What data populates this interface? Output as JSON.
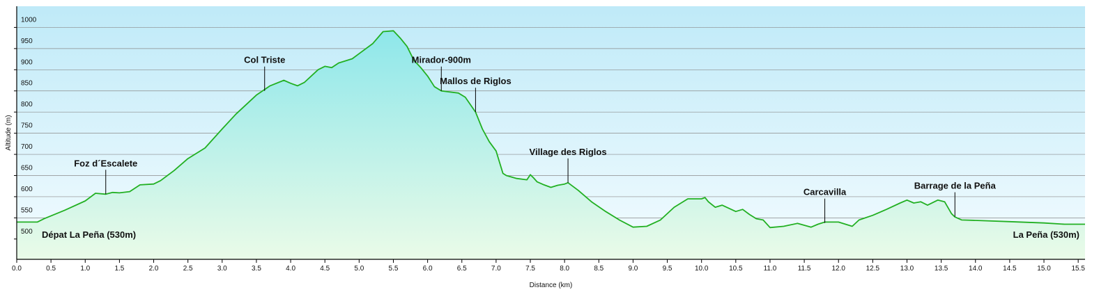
{
  "chart_data": {
    "type": "area",
    "xlabel": "Distance  (km)",
    "ylabel": "Altitude (m)",
    "xlim": [
      0,
      15.6
    ],
    "ylim": [
      452,
      1050
    ],
    "xticks": [
      "0.0",
      "0.5",
      "1.0",
      "1.5",
      "2.0",
      "2.5",
      "3.0",
      "3.5",
      "4.0",
      "4.5",
      "5.0",
      "5.5",
      "6.0",
      "6.5",
      "7.0",
      "7.5",
      "8.0",
      "8.5",
      "9.0",
      "9.5",
      "10.0",
      "10.5",
      "11.0",
      "11.5",
      "12.0",
      "12.5",
      "13.0",
      "13.5",
      "14.0",
      "14.5",
      "15.0",
      "15.5"
    ],
    "yticks": [
      500,
      550,
      600,
      650,
      700,
      750,
      800,
      850,
      900,
      950,
      1000
    ],
    "grid": true,
    "colors": {
      "line": "#22b022",
      "fill_top": "#8ee7ea",
      "fill_bottom": "#eafbe8",
      "bg_top": "#bfeaf8",
      "bg_bottom": "#f4fcff",
      "grid": "#8a8a8a"
    },
    "x": [
      0,
      0.3,
      0.4,
      0.7,
      1.0,
      1.15,
      1.3,
      1.4,
      1.5,
      1.65,
      1.8,
      2.0,
      2.1,
      2.3,
      2.5,
      2.75,
      3.0,
      3.2,
      3.5,
      3.7,
      3.9,
      4.0,
      4.1,
      4.2,
      4.4,
      4.5,
      4.6,
      4.7,
      4.9,
      5.0,
      5.2,
      5.35,
      5.5,
      5.6,
      5.7,
      5.8,
      5.9,
      6.0,
      6.1,
      6.2,
      6.3,
      6.45,
      6.55,
      6.7,
      6.8,
      6.9,
      7.0,
      7.1,
      7.15,
      7.3,
      7.45,
      7.5,
      7.55,
      7.6,
      7.7,
      7.8,
      7.9,
      8.0,
      8.05,
      8.2,
      8.4,
      8.6,
      8.8,
      9.0,
      9.2,
      9.4,
      9.6,
      9.8,
      10.0,
      10.05,
      10.1,
      10.2,
      10.3,
      10.5,
      10.6,
      10.7,
      10.8,
      10.9,
      11.0,
      11.2,
      11.4,
      11.6,
      11.7,
      11.8,
      12.0,
      12.2,
      12.3,
      12.5,
      12.7,
      12.9,
      13.0,
      13.1,
      13.2,
      13.3,
      13.45,
      13.55,
      13.65,
      13.7,
      13.8,
      14.0,
      14.5,
      15.0,
      15.3,
      15.6
    ],
    "y": [
      540,
      540,
      548,
      568,
      590,
      608,
      606,
      610,
      609,
      612,
      628,
      630,
      638,
      662,
      690,
      715,
      760,
      795,
      840,
      862,
      875,
      868,
      862,
      870,
      900,
      908,
      905,
      916,
      926,
      938,
      962,
      990,
      992,
      975,
      955,
      922,
      905,
      885,
      860,
      850,
      848,
      845,
      835,
      800,
      760,
      730,
      708,
      655,
      650,
      643,
      640,
      652,
      644,
      635,
      628,
      622,
      627,
      630,
      633,
      615,
      587,
      565,
      545,
      528,
      530,
      545,
      575,
      595,
      595,
      598,
      588,
      575,
      580,
      565,
      570,
      558,
      548,
      545,
      527,
      530,
      537,
      528,
      535,
      540,
      540,
      530,
      545,
      556,
      570,
      585,
      592,
      585,
      588,
      580,
      592,
      588,
      560,
      552,
      545,
      544,
      541,
      538,
      535,
      535
    ]
  },
  "annotations": [
    {
      "label": "Dépat La Peña (530m)",
      "x": 0.4,
      "y": 540,
      "pointer": false
    },
    {
      "label": "Foz d´Escalete",
      "x": 1.3,
      "y": 606,
      "pointer": true
    },
    {
      "label": "Col Triste",
      "x": 3.62,
      "y": 850,
      "pointer": true
    },
    {
      "label": "Mirador-900m",
      "x": 6.2,
      "y": 850,
      "pointer": true
    },
    {
      "label": "Mallos de Riglos",
      "x": 6.7,
      "y": 800,
      "pointer": true
    },
    {
      "label": "Village des Riglos",
      "x": 8.05,
      "y": 633,
      "pointer": true
    },
    {
      "label": "Carcavilla",
      "x": 11.8,
      "y": 538,
      "pointer": true
    },
    {
      "label": "Barrage de la Peña",
      "x": 13.7,
      "y": 553,
      "pointer": true
    },
    {
      "label": "La Peña (530m)",
      "x": 15.55,
      "y": 535,
      "pointer": false
    }
  ]
}
